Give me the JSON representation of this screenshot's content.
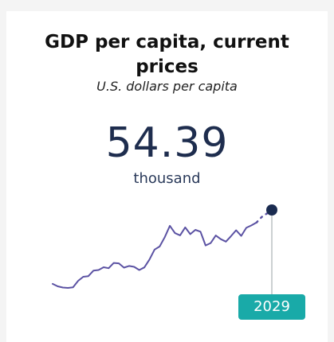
{
  "card": {
    "title": "GDP per capita, current prices",
    "subtitle": "U.S. dollars per capita",
    "value": "54.39",
    "unit": "thousand",
    "highlight_year": "2029"
  },
  "colors": {
    "line": "#5b52a3",
    "marker": "#1a2b50",
    "badge": "#19aaa8",
    "guide": "#9aa0a6"
  },
  "chart_data": {
    "type": "line",
    "series": [
      {
        "values": [
          18.0,
          16.8,
          16.2,
          16.0,
          16.3,
          19.5,
          21.5,
          21.8,
          24.5,
          24.8,
          26.2,
          25.7,
          28.3,
          28.1,
          26.0,
          26.8,
          26.4,
          24.8,
          26.1,
          30.0,
          34.9,
          36.4,
          41.0,
          46.6,
          43.0,
          41.9,
          45.8,
          42.5,
          44.6,
          43.7,
          36.9,
          38.1,
          41.8,
          40.0,
          38.8,
          41.5,
          44.4,
          41.6,
          45.6,
          46.8,
          48.2,
          50.9,
          52.6,
          54.39
        ]
      }
    ],
    "projected_points_from_end": 3,
    "final_value": 54.39,
    "final_label": "2029"
  }
}
